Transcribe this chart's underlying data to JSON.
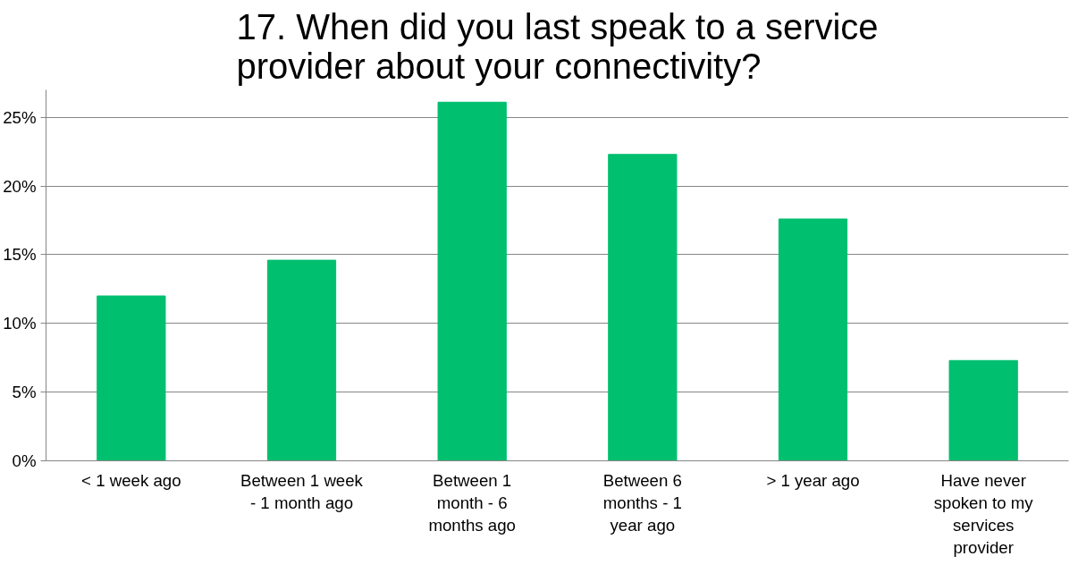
{
  "chart_data": {
    "type": "bar",
    "title": "17. When did you last speak to a service provider about your connectivity?",
    "categories": [
      "< 1 week ago",
      "Between 1 week - 1 month ago",
      "Between 1 month - 6 months ago",
      "Between 6 months - 1 year ago",
      "> 1 year ago",
      "Have never spoken to my services provider"
    ],
    "values": [
      12.0,
      14.6,
      26.1,
      22.3,
      17.6,
      7.3
    ],
    "color": "#00bf6f",
    "ylim": [
      0,
      27
    ],
    "yticks": [
      {
        "value": 0,
        "label": "0%"
      },
      {
        "value": 5,
        "label": "5%"
      },
      {
        "value": 10,
        "label": "10%"
      },
      {
        "value": 15,
        "label": "15%"
      },
      {
        "value": 20,
        "label": "20%"
      },
      {
        "value": 25,
        "label": "25%"
      }
    ],
    "grid": "y"
  }
}
